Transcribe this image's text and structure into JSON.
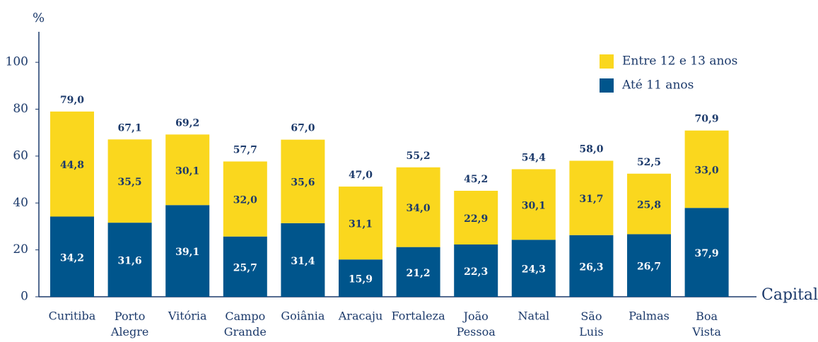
{
  "chart_data": {
    "type": "stacked_bar",
    "y_label": "%",
    "x_label": "Capital",
    "categories": [
      "Curitiba",
      "Porto Alegre",
      "Vitória",
      "Campo Grande",
      "Goiânia",
      "Aracaju",
      "Fortaleza",
      "João Pessoa",
      "Natal",
      "São Luis",
      "Palmas",
      "Boa Vista"
    ],
    "series": [
      {
        "name": "Até 11 anos",
        "color": "#00558c",
        "values": [
          34.2,
          31.6,
          39.1,
          25.7,
          31.4,
          15.9,
          21.2,
          22.3,
          24.3,
          26.3,
          26.7,
          37.9
        ],
        "value_labels": [
          "34,2",
          "31,6",
          "39,1",
          "25,7",
          "31,4",
          "15,9",
          "21,2",
          "22,3",
          "24,3",
          "26,3",
          "26,7",
          "37,9"
        ]
      },
      {
        "name": "Entre 12 e 13 anos",
        "color": "#fad71e",
        "values": [
          44.8,
          35.5,
          30.1,
          32.0,
          35.6,
          31.1,
          34.0,
          22.9,
          30.1,
          31.7,
          25.8,
          33.0
        ],
        "value_labels": [
          "44,8",
          "35,5",
          "30,1",
          "32,0",
          "35,6",
          "31,1",
          "34,0",
          "22,9",
          "30,1",
          "31,7",
          "25,8",
          "33,0"
        ]
      }
    ],
    "totals": [
      79.0,
      67.1,
      69.2,
      57.7,
      67.0,
      47.0,
      55.2,
      45.2,
      54.4,
      58.0,
      52.5,
      70.9
    ],
    "total_labels": [
      "79,0",
      "67,1",
      "69,2",
      "57,7",
      "67,0",
      "47,0",
      "55,2",
      "45,2",
      "54,4",
      "58,0",
      "52,5",
      "70,9"
    ],
    "ylim": [
      0,
      113
    ],
    "yticks": [
      0,
      20,
      40,
      60,
      80,
      100
    ],
    "legend": "upper right"
  }
}
